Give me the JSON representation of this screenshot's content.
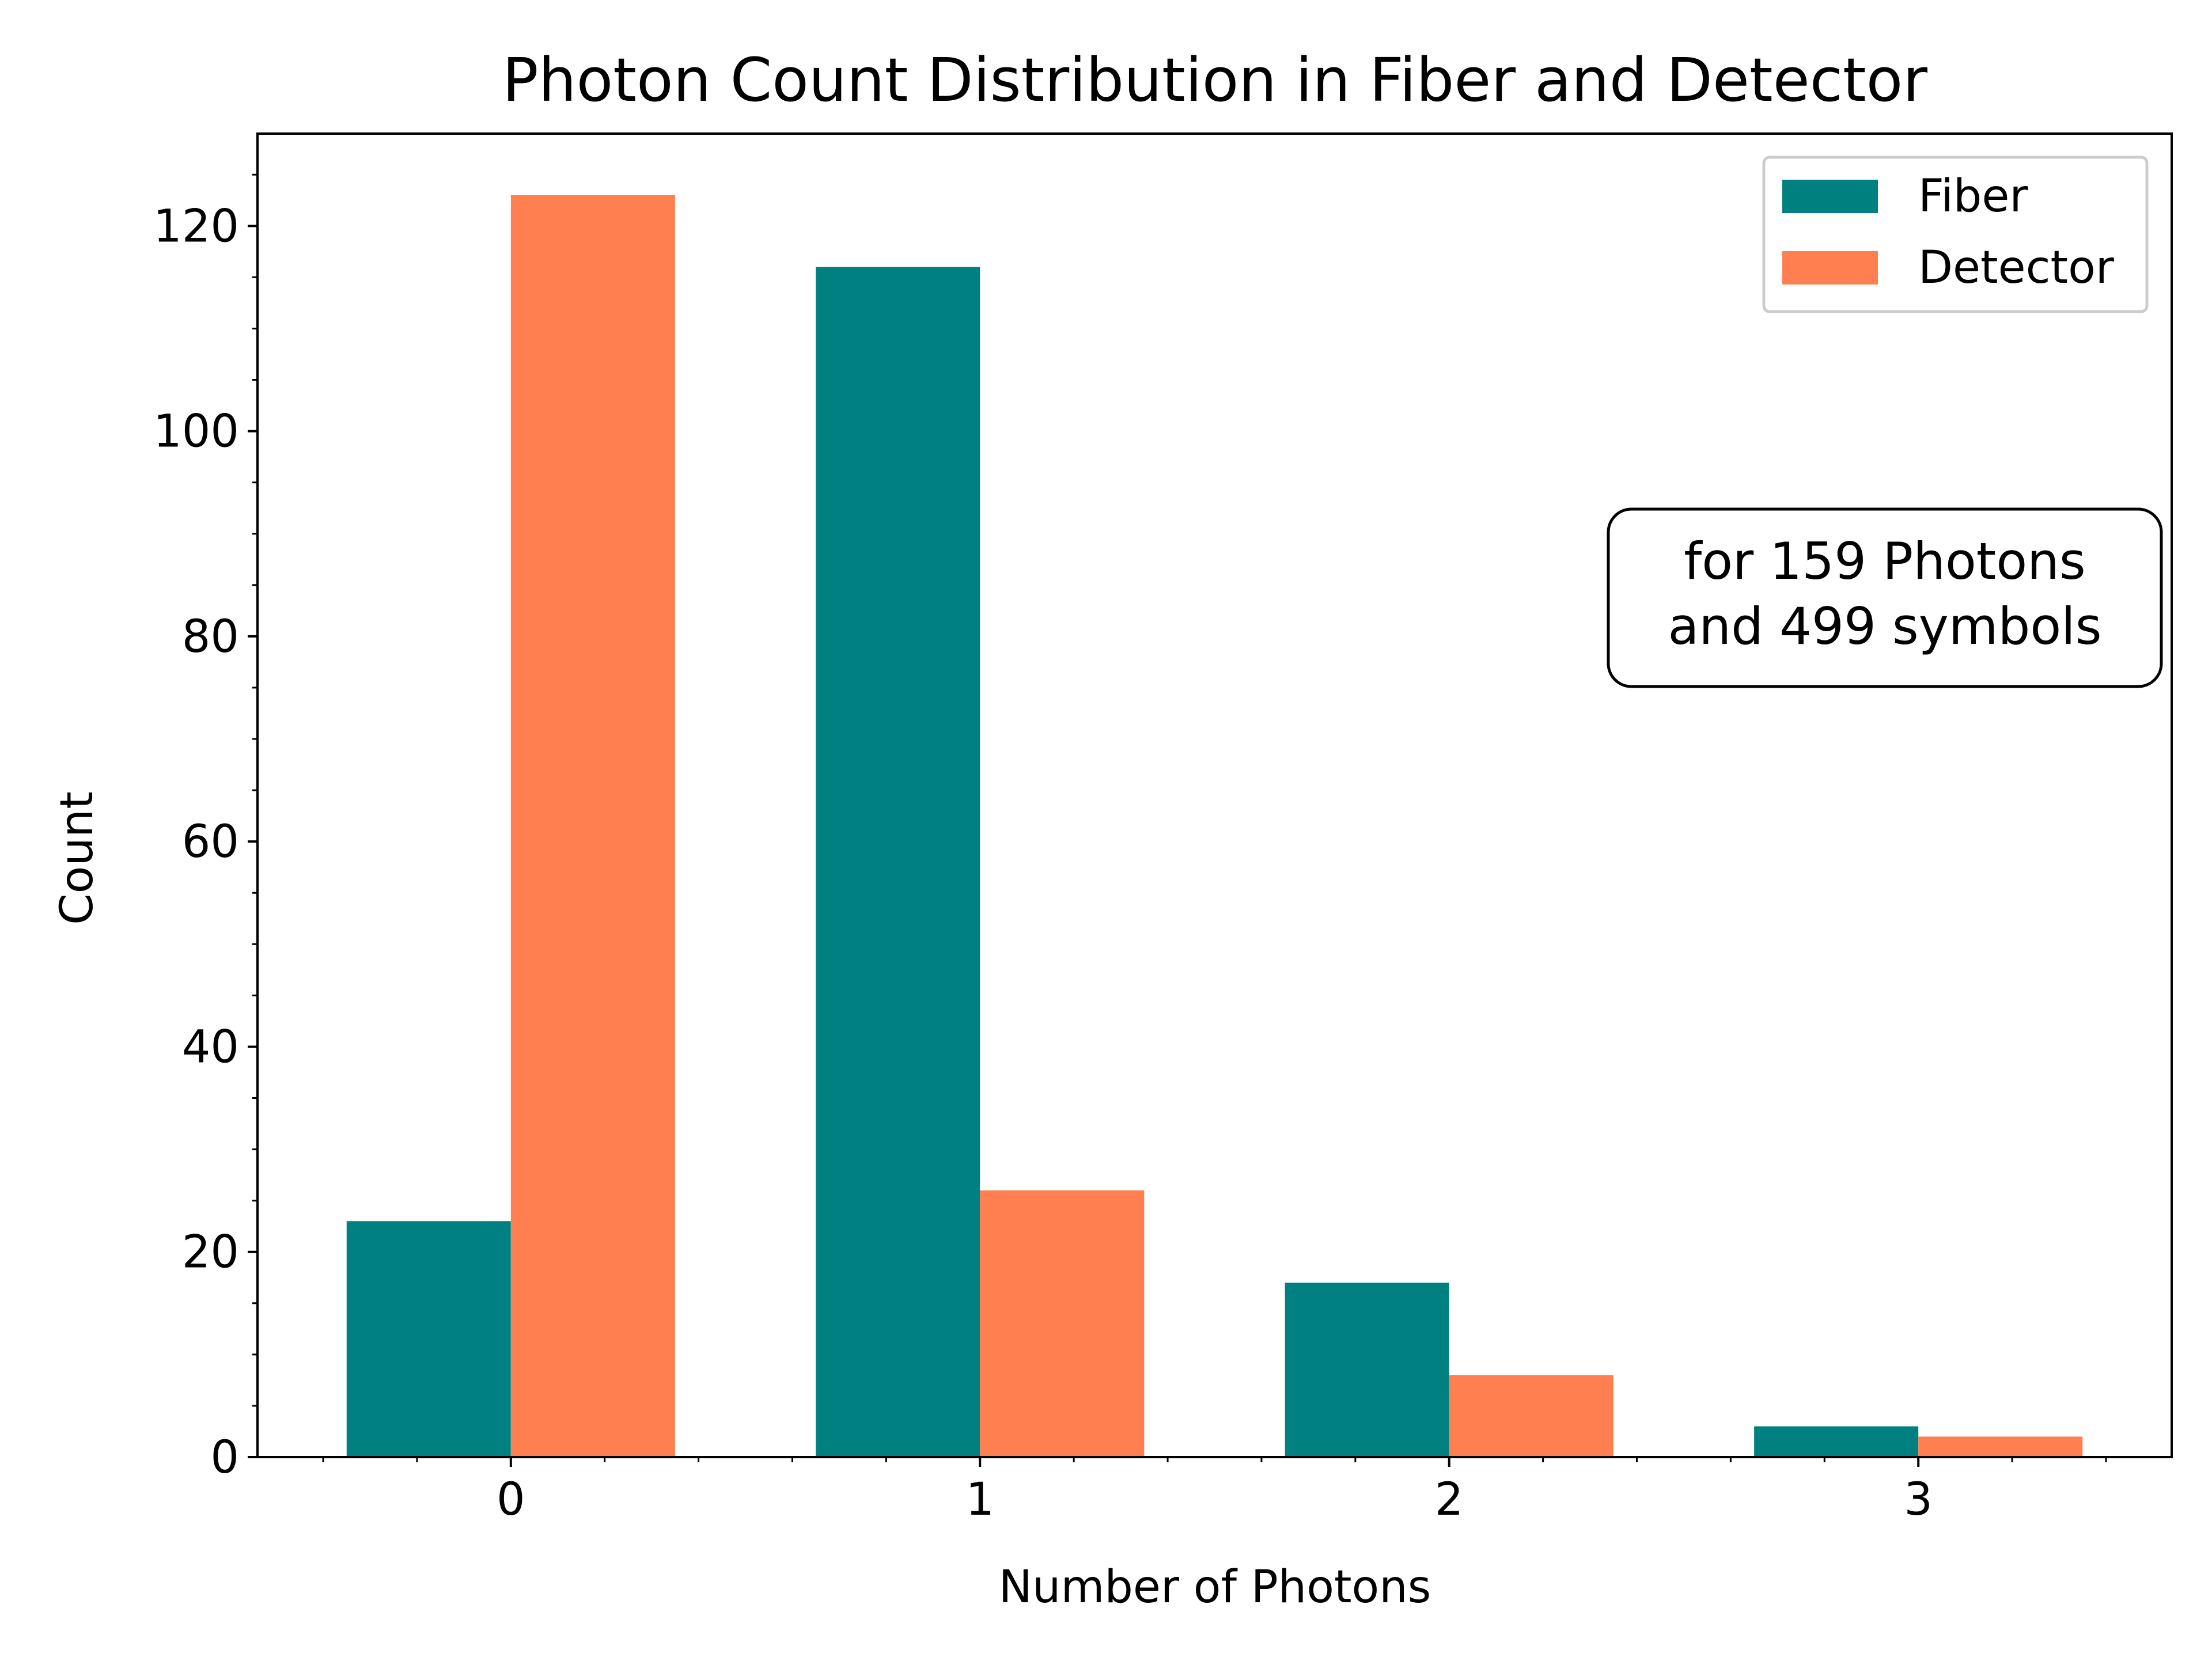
{
  "chart_data": {
    "type": "bar",
    "title": "Photon Count Distribution in Fiber and Detector",
    "xlabel": "Number of Photons",
    "ylabel": "Count",
    "categories": [
      "0",
      "1",
      "2",
      "3"
    ],
    "series": [
      {
        "name": "Fiber",
        "values": [
          23,
          116,
          17,
          3
        ],
        "color": "#008080"
      },
      {
        "name": "Detector",
        "values": [
          123,
          26,
          8,
          2
        ],
        "color": "#FF7F50"
      }
    ],
    "ylim": [
      0,
      129
    ],
    "xlim": [
      -0.54,
      3.54
    ],
    "yticks": [
      0,
      20,
      40,
      60,
      80,
      100,
      120
    ],
    "grid": false,
    "legend": {
      "placement": "top-right"
    },
    "annotation": {
      "lines": [
        "for 159 Photons",
        "and 499 symbols"
      ]
    }
  }
}
